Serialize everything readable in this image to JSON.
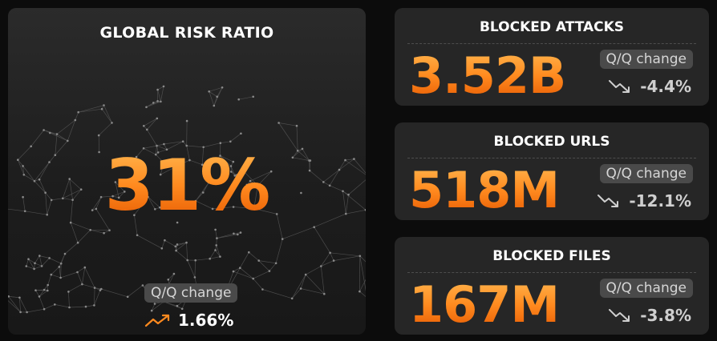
{
  "global_risk": {
    "title": "GLOBAL RISK RATIO",
    "value": "31%",
    "change_label": "Q/Q change",
    "change_value": "1.66%",
    "trend_icon": "trend-up-icon"
  },
  "stats": [
    {
      "title": "BLOCKED ATTACKS",
      "value": "3.52B",
      "change_label": "Q/Q change",
      "change_value": "-4.4%",
      "trend_icon": "trend-down-icon"
    },
    {
      "title": "BLOCKED URLS",
      "value": "518M",
      "change_label": "Q/Q change",
      "change_value": "-12.1%",
      "trend_icon": "trend-down-icon"
    },
    {
      "title": "BLOCKED FILES",
      "value": "167M",
      "change_label": "Q/Q change",
      "change_value": "-3.8%",
      "trend_icon": "trend-down-icon"
    }
  ],
  "colors": {
    "accent": "#ff8a1f",
    "card_bg": "#262626",
    "page_bg": "#0c0c0c",
    "chip_bg": "#4a4a4a"
  }
}
